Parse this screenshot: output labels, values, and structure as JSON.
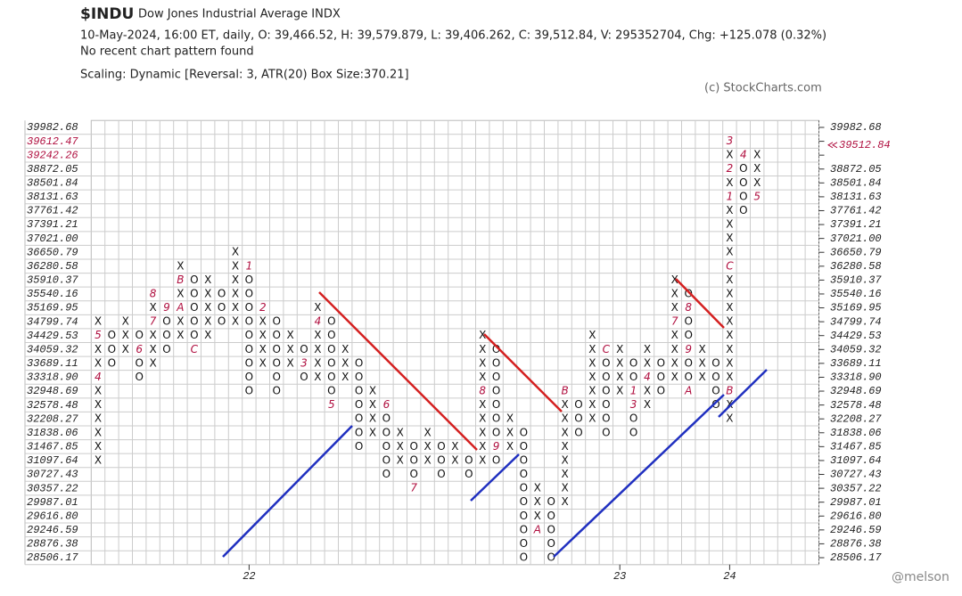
{
  "chart_data": {
    "type": "pnf",
    "title": "$INDU",
    "subtitle": "Dow Jones Industrial Average  INDX",
    "info": "10-May-2024, 16:00 ET, daily, O: 39,466.52, H: 39,579.879, L: 39,406.262, C: 39,512.84, V: 295352704, Chg: +125.078 (0.32%)",
    "pattern_note": "No recent chart pattern found",
    "scaling": "Scaling: Dynamic [Reversal: 3, ATR(20) Box Size:370.21]",
    "box_size": 370.21,
    "source": "(c) StockCharts.com",
    "watermark": "@melson",
    "last": 39512.84,
    "ylim": [
      28506.17,
      39982.68
    ],
    "yticks": [
      28506.17,
      28876.38,
      29246.59,
      {
        "value": 29616.8,
        "label": "29616.80"
      },
      29987.01,
      30357.22,
      30727.43,
      31097.64,
      31467.85,
      31838.06,
      32208.27,
      32578.48,
      32948.69,
      {
        "value": 33318.9,
        "label": "33318.90"
      },
      33689.11,
      34059.32,
      34429.53,
      34799.74,
      35169.95,
      35540.16,
      35910.37,
      36280.58,
      36650.79,
      {
        "value": 37021,
        "label": "37021.00"
      },
      37391.21,
      37761.42,
      38131.63,
      38501.84,
      38872.05,
      39242.26,
      39612.47,
      39982.68
    ],
    "columns": [
      {
        "type": "X",
        "low": 31097.64,
        "high": 34799.74,
        "markers": [
          {
            "value": 33318.9,
            "label": "4"
          },
          {
            "value": 34429.53,
            "label": "5"
          }
        ]
      },
      {
        "type": "O",
        "low": 33689.11,
        "high": 34429.53
      },
      {
        "type": "X",
        "low": 34059.32,
        "high": 34799.74
      },
      {
        "type": "O",
        "low": 33318.9,
        "high": 34429.53,
        "markers": [
          {
            "value": 34059.32,
            "label": "6"
          }
        ]
      },
      {
        "type": "X",
        "low": 33689.11,
        "high": 35540.16,
        "markers": [
          {
            "value": 34799.74,
            "label": "7"
          },
          {
            "value": 35540.16,
            "label": "8"
          }
        ]
      },
      {
        "type": "O",
        "low": 34059.32,
        "high": 35169.95,
        "markers": [
          {
            "value": 35169.95,
            "label": "9"
          }
        ]
      },
      {
        "type": "X",
        "low": 34429.53,
        "high": 36280.58,
        "markers": [
          {
            "value": 35169.95,
            "label": "A"
          },
          {
            "value": 35910.37,
            "label": "B"
          }
        ]
      },
      {
        "type": "O",
        "low": 34059.32,
        "high": 35910.37,
        "markers": [
          {
            "value": 34059.32,
            "label": "C"
          }
        ]
      },
      {
        "type": "X",
        "low": 34429.53,
        "high": 35910.37
      },
      {
        "type": "O",
        "low": 34799.74,
        "high": 35540.16
      },
      {
        "type": "X",
        "low": 34799.74,
        "high": 36650.79
      },
      {
        "type": "O",
        "low": 32948.69,
        "high": 36280.58,
        "label": "22",
        "markers": [
          {
            "value": 36280.58,
            "label": "1"
          }
        ]
      },
      {
        "type": "X",
        "low": 33689.11,
        "high": 35169.95,
        "markers": [
          {
            "value": 35169.95,
            "label": "2"
          }
        ]
      },
      {
        "type": "O",
        "low": 32948.69,
        "high": 34799.74
      },
      {
        "type": "X",
        "low": 33689.11,
        "high": 34429.53
      },
      {
        "type": "O",
        "low": 33318.9,
        "high": 34059.32,
        "markers": [
          {
            "value": 33689.11,
            "label": "3"
          }
        ]
      },
      {
        "type": "X",
        "low": 33318.9,
        "high": 35169.95,
        "markers": [
          {
            "value": 34799.74,
            "label": "4"
          }
        ]
      },
      {
        "type": "O",
        "low": 32578.48,
        "high": 34799.74,
        "markers": [
          {
            "value": 32578.48,
            "label": "5"
          }
        ]
      },
      {
        "type": "X",
        "low": 33318.9,
        "high": 34059.32
      },
      {
        "type": "O",
        "low": 31467.85,
        "high": 33689.11
      },
      {
        "type": "X",
        "low": 31838.06,
        "high": 32948.69
      },
      {
        "type": "O",
        "low": 30727.43,
        "high": 32578.48,
        "markers": [
          {
            "value": 32578.48,
            "label": "6"
          }
        ]
      },
      {
        "type": "X",
        "low": 31097.64,
        "high": 31838.06
      },
      {
        "type": "O",
        "low": 30357.22,
        "high": 31467.85,
        "markers": [
          {
            "value": 30357.22,
            "label": "7"
          }
        ]
      },
      {
        "type": "X",
        "low": 31097.64,
        "high": 31838.06
      },
      {
        "type": "O",
        "low": 30727.43,
        "high": 31467.85
      },
      {
        "type": "X",
        "low": 31097.64,
        "high": 31467.85
      },
      {
        "type": "O",
        "low": 30727.43,
        "high": 31097.64
      },
      {
        "type": "X",
        "low": 31097.64,
        "high": 34429.53,
        "markers": [
          {
            "value": 32948.69,
            "label": "8"
          }
        ]
      },
      {
        "type": "O",
        "low": 31097.64,
        "high": 34059.32,
        "markers": [
          {
            "value": 31467.85,
            "label": "9"
          }
        ]
      },
      {
        "type": "X",
        "low": 31467.85,
        "high": 32208.27
      },
      {
        "type": "O",
        "low": 28506.17,
        "high": 31838.06
      },
      {
        "type": "X",
        "low": 29246.59,
        "high": 30357.22,
        "markers": [
          {
            "value": 29246.59,
            "label": "A"
          }
        ]
      },
      {
        "type": "O",
        "low": 28506.17,
        "high": 29987.01
      },
      {
        "type": "X",
        "low": 29987.01,
        "high": 32948.69,
        "markers": [
          {
            "value": 32948.69,
            "label": "B"
          }
        ]
      },
      {
        "type": "O",
        "low": 31838.06,
        "high": 32578.48
      },
      {
        "type": "X",
        "low": 32208.27,
        "high": 34429.53
      },
      {
        "type": "O",
        "low": 31838.06,
        "high": 34059.32,
        "markers": [
          {
            "value": 34059.32,
            "label": "C"
          }
        ]
      },
      {
        "type": "X",
        "low": 32948.69,
        "high": 34059.32,
        "label": "23"
      },
      {
        "type": "O",
        "low": 31838.06,
        "high": 33689.11,
        "markers": [
          {
            "value": 32578.48,
            "label": "3"
          },
          {
            "value": 32948.69,
            "label": "1"
          }
        ]
      },
      {
        "type": "X",
        "low": 32578.48,
        "high": 34059.32,
        "markers": [
          {
            "value": 33318.9,
            "label": "4"
          }
        ]
      },
      {
        "type": "O",
        "low": 32948.69,
        "high": 33689.11
      },
      {
        "type": "X",
        "low": 33318.9,
        "high": 35910.37,
        "markers": [
          {
            "value": 34799.74,
            "label": "7"
          }
        ]
      },
      {
        "type": "O",
        "low": 32948.69,
        "high": 35540.16,
        "markers": [
          {
            "value": 35169.95,
            "label": "8"
          },
          {
            "value": 34059.32,
            "label": "9"
          },
          {
            "value": 32948.69,
            "label": "A"
          }
        ]
      },
      {
        "type": "X",
        "low": 33318.9,
        "high": 34059.32
      },
      {
        "type": "O",
        "low": 32578.48,
        "high": 33689.11
      },
      {
        "type": "X",
        "low": 32208.27,
        "high": 39612.47,
        "label": "24",
        "markers": [
          {
            "value": 32948.69,
            "label": "B"
          },
          {
            "value": 36280.58,
            "label": "C"
          },
          {
            "value": 38131.63,
            "label": "1"
          },
          {
            "value": 38872.05,
            "label": "2"
          },
          {
            "value": 39612.47,
            "label": "3"
          }
        ]
      },
      {
        "type": "O",
        "low": 37761.42,
        "high": 39242.26,
        "markers": [
          {
            "value": 39242.26,
            "label": "4"
          }
        ]
      },
      {
        "type": "X",
        "low": 38131.63,
        "high": 39242.26,
        "markers": [
          {
            "value": 38131.63,
            "label": "5"
          }
        ]
      }
    ]
  }
}
